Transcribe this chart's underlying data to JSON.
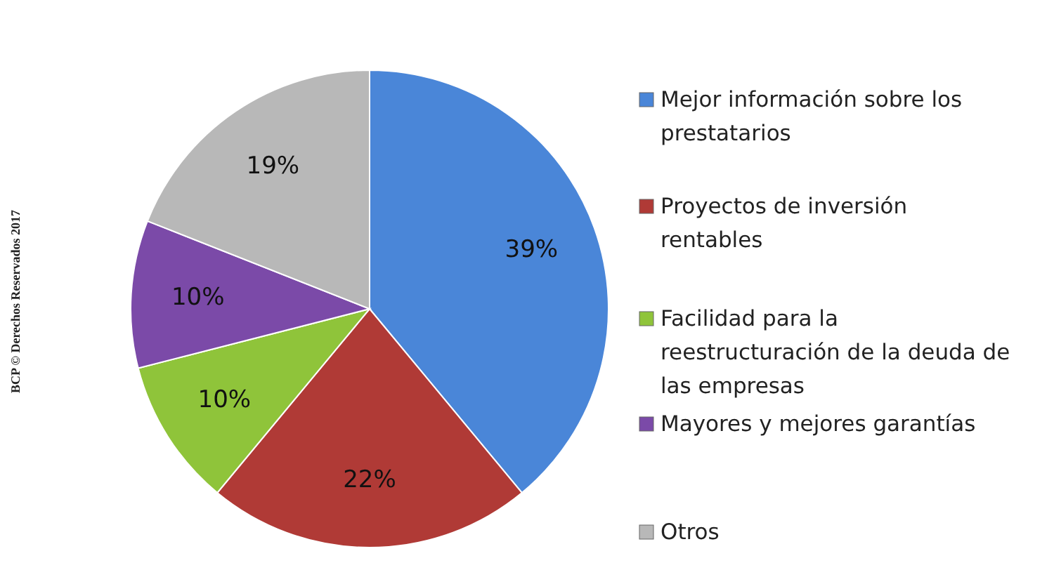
{
  "chart_data": {
    "type": "pie",
    "categories": [
      "Mejor información sobre los prestatarios",
      "Proyectos de inversión rentables",
      "Facilidad para la reestructuración de la deuda de las empresas",
      "Mayores y mejores garantías",
      "Otros"
    ],
    "values": [
      39,
      22,
      10,
      10,
      19
    ],
    "colors": [
      "#4a86d8",
      "#b03a36",
      "#8fc43a",
      "#7b4aa8",
      "#b8b8b8"
    ],
    "value_labels": [
      "39%",
      "22%",
      "10%",
      "10%",
      "19%"
    ],
    "legend": "right",
    "annotations": [
      "BCP © Derechos Reservados 2017"
    ]
  }
}
